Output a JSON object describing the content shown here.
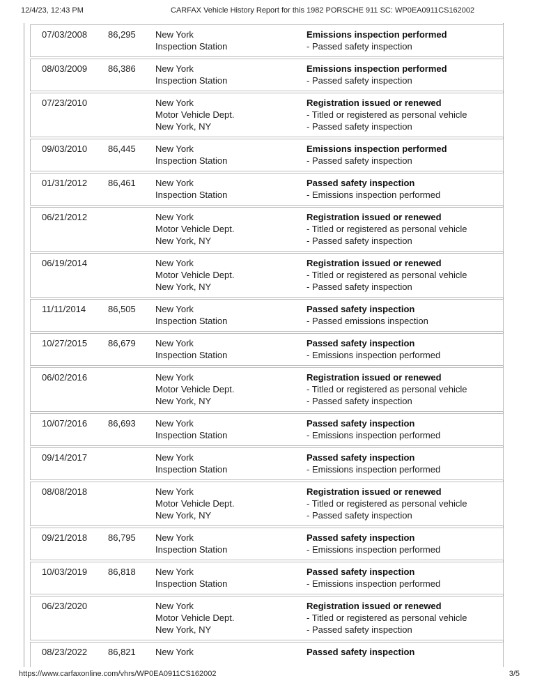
{
  "header": {
    "datetime": "12/4/23, 12:43 PM",
    "title": "CARFAX Vehicle History Report for this 1982 PORSCHE 911 SC: WP0EA0911CS162002"
  },
  "footer": {
    "url": "https://www.carfaxonline.com/vhrs/WP0EA0911CS162002",
    "page_indicator": "3/5"
  },
  "colors": {
    "row_border": "#bcbcbc",
    "section_border": "#a3a3a3",
    "text": "#1c1c1c"
  },
  "table": {
    "rows": [
      {
        "date": "07/03/2008",
        "mileage": "86,295",
        "source_lines": [
          "New York",
          "Inspection Station"
        ],
        "comment_title": "Emissions inspection performed",
        "comment_details": [
          "- Passed safety inspection"
        ]
      },
      {
        "date": "08/03/2009",
        "mileage": "86,386",
        "source_lines": [
          "New York",
          "Inspection Station"
        ],
        "comment_title": "Emissions inspection performed",
        "comment_details": [
          "- Passed safety inspection"
        ]
      },
      {
        "date": "07/23/2010",
        "mileage": "",
        "source_lines": [
          "New York",
          "Motor Vehicle Dept.",
          "New York, NY"
        ],
        "comment_title": "Registration issued or renewed",
        "comment_details": [
          "- Titled or registered as personal vehicle",
          "- Passed safety inspection"
        ]
      },
      {
        "date": "09/03/2010",
        "mileage": "86,445",
        "source_lines": [
          "New York",
          "Inspection Station"
        ],
        "comment_title": "Emissions inspection performed",
        "comment_details": [
          "- Passed safety inspection"
        ]
      },
      {
        "date": "01/31/2012",
        "mileage": "86,461",
        "source_lines": [
          "New York",
          "Inspection Station"
        ],
        "comment_title": "Passed safety inspection",
        "comment_details": [
          "- Emissions inspection performed"
        ]
      },
      {
        "date": "06/21/2012",
        "mileage": "",
        "source_lines": [
          "New York",
          "Motor Vehicle Dept.",
          "New York, NY"
        ],
        "comment_title": "Registration issued or renewed",
        "comment_details": [
          "- Titled or registered as personal vehicle",
          "- Passed safety inspection"
        ]
      },
      {
        "date": "06/19/2014",
        "mileage": "",
        "source_lines": [
          "New York",
          "Motor Vehicle Dept.",
          "New York, NY"
        ],
        "comment_title": "Registration issued or renewed",
        "comment_details": [
          "- Titled or registered as personal vehicle",
          "- Passed safety inspection"
        ]
      },
      {
        "date": "11/11/2014",
        "mileage": "86,505",
        "source_lines": [
          "New York",
          "Inspection Station"
        ],
        "comment_title": "Passed safety inspection",
        "comment_details": [
          "- Passed emissions inspection"
        ]
      },
      {
        "date": "10/27/2015",
        "mileage": "86,679",
        "source_lines": [
          "New York",
          "Inspection Station"
        ],
        "comment_title": "Passed safety inspection",
        "comment_details": [
          "- Emissions inspection performed"
        ]
      },
      {
        "date": "06/02/2016",
        "mileage": "",
        "source_lines": [
          "New York",
          "Motor Vehicle Dept.",
          "New York, NY"
        ],
        "comment_title": "Registration issued or renewed",
        "comment_details": [
          "- Titled or registered as personal vehicle",
          "- Passed safety inspection"
        ]
      },
      {
        "date": "10/07/2016",
        "mileage": "86,693",
        "source_lines": [
          "New York",
          "Inspection Station"
        ],
        "comment_title": "Passed safety inspection",
        "comment_details": [
          "- Emissions inspection performed"
        ]
      },
      {
        "date": "09/14/2017",
        "mileage": "",
        "source_lines": [
          "New York",
          "Inspection Station"
        ],
        "comment_title": "Passed safety inspection",
        "comment_details": [
          "- Emissions inspection performed"
        ]
      },
      {
        "date": "08/08/2018",
        "mileage": "",
        "source_lines": [
          "New York",
          "Motor Vehicle Dept.",
          "New York, NY"
        ],
        "comment_title": "Registration issued or renewed",
        "comment_details": [
          "- Titled or registered as personal vehicle",
          "- Passed safety inspection"
        ]
      },
      {
        "date": "09/21/2018",
        "mileage": "86,795",
        "source_lines": [
          "New York",
          "Inspection Station"
        ],
        "comment_title": "Passed safety inspection",
        "comment_details": [
          "- Emissions inspection performed"
        ]
      },
      {
        "date": "10/03/2019",
        "mileage": "86,818",
        "source_lines": [
          "New York",
          "Inspection Station"
        ],
        "comment_title": "Passed safety inspection",
        "comment_details": [
          "- Emissions inspection performed"
        ]
      },
      {
        "date": "06/23/2020",
        "mileage": "",
        "source_lines": [
          "New York",
          "Motor Vehicle Dept.",
          "New York, NY"
        ],
        "comment_title": "Registration issued or renewed",
        "comment_details": [
          "- Titled or registered as personal vehicle",
          "- Passed safety inspection"
        ]
      },
      {
        "date": "08/23/2022",
        "mileage": "86,821",
        "source_lines": [
          "New York"
        ],
        "comment_title": "Passed safety inspection",
        "comment_details": []
      }
    ]
  }
}
